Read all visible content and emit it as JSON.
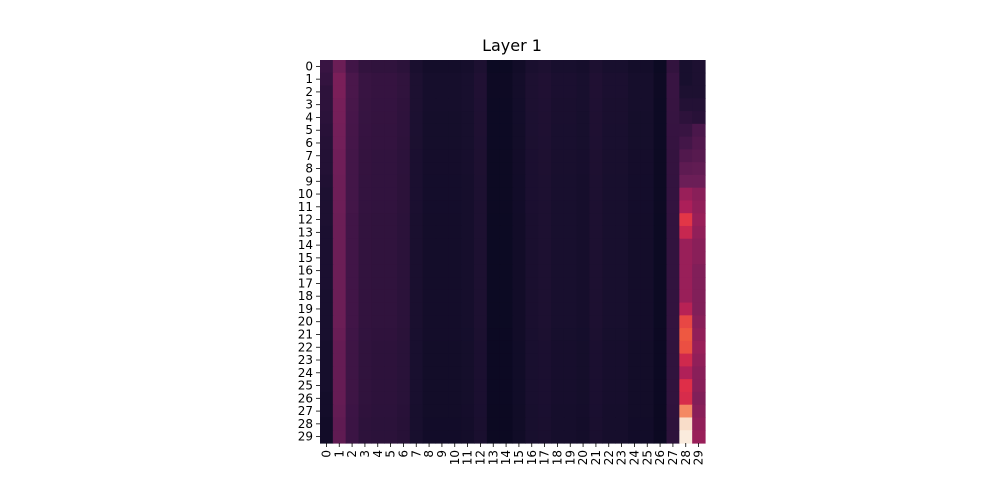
{
  "chart_data": {
    "type": "heatmap",
    "title": "Layer 1",
    "xlabel": "",
    "ylabel": "",
    "x_ticks": [
      "0",
      "1",
      "2",
      "3",
      "4",
      "5",
      "6",
      "7",
      "8",
      "9",
      "10",
      "11",
      "12",
      "13",
      "14",
      "15",
      "16",
      "17",
      "18",
      "19",
      "20",
      "21",
      "22",
      "23",
      "24",
      "25",
      "26",
      "27",
      "28",
      "29"
    ],
    "y_ticks": [
      "0",
      "1",
      "2",
      "3",
      "4",
      "5",
      "6",
      "7",
      "8",
      "9",
      "10",
      "11",
      "12",
      "13",
      "14",
      "15",
      "16",
      "17",
      "18",
      "19",
      "20",
      "21",
      "22",
      "23",
      "24",
      "25",
      "26",
      "27",
      "28",
      "29"
    ],
    "colormap": "rocket",
    "colorbar": false,
    "value_range": [
      0,
      1
    ],
    "column_profile": [
      0.15,
      0.42,
      0.28,
      0.22,
      0.21,
      0.21,
      0.19,
      0.12,
      0.09,
      0.09,
      0.09,
      0.1,
      0.13,
      0.05,
      0.05,
      0.08,
      0.12,
      0.13,
      0.11,
      0.11,
      0.1,
      0.13,
      0.11,
      0.11,
      0.09,
      0.09,
      0.05,
      0.22,
      0.6,
      0.45
    ],
    "row_modifier": [
      0.9,
      1.0,
      1.0,
      0.98,
      0.97,
      0.96,
      0.95,
      0.93,
      0.93,
      0.92,
      0.92,
      0.92,
      0.9,
      0.9,
      0.9,
      0.9,
      0.9,
      0.9,
      0.9,
      0.9,
      0.9,
      0.88,
      0.86,
      0.86,
      0.86,
      0.86,
      0.86,
      0.84,
      0.82,
      0.82
    ],
    "column_28_values": [
      0.1,
      0.1,
      0.12,
      0.14,
      0.18,
      0.22,
      0.26,
      0.3,
      0.34,
      0.38,
      0.5,
      0.55,
      0.7,
      0.62,
      0.5,
      0.5,
      0.5,
      0.5,
      0.5,
      0.58,
      0.74,
      0.78,
      0.76,
      0.64,
      0.56,
      0.68,
      0.66,
      0.86,
      0.98,
      1.0
    ],
    "column_29_values": [
      0.12,
      0.12,
      0.12,
      0.14,
      0.16,
      0.28,
      0.3,
      0.32,
      0.35,
      0.38,
      0.46,
      0.48,
      0.5,
      0.48,
      0.46,
      0.46,
      0.44,
      0.44,
      0.44,
      0.44,
      0.46,
      0.48,
      0.5,
      0.48,
      0.46,
      0.46,
      0.44,
      0.46,
      0.48,
      0.5
    ],
    "column_0_values": [
      0.22,
      0.2,
      0.18,
      0.18,
      0.17,
      0.16,
      0.15,
      0.14,
      0.14,
      0.13,
      0.12,
      0.12,
      0.12,
      0.11,
      0.11,
      0.11,
      0.11,
      0.11,
      0.1,
      0.1,
      0.1,
      0.1,
      0.09,
      0.09,
      0.09,
      0.09,
      0.08,
      0.08,
      0.07,
      0.07
    ]
  }
}
